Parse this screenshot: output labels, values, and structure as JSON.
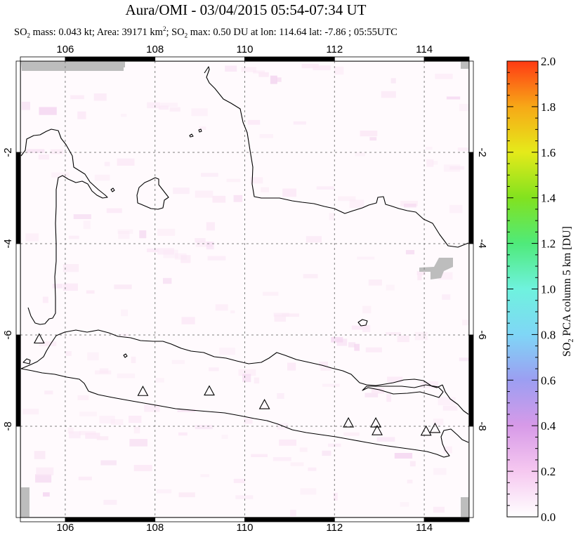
{
  "header": {
    "title": "Aura/OMI - 03/04/2015 05:54-07:34 UT",
    "subtitle": {
      "p1": "SO",
      "p1_sub": "2",
      "p2": " mass: 0.043 kt; Area: 39171 km",
      "p2_sup": "2",
      "p3": "; SO",
      "p3_sub": "2",
      "p4": " max: 0.50 DU at lon: 114.64 lat: -7.86 ; 05:55UTC"
    }
  },
  "chart_data": {
    "type": "heatmap",
    "title": "Aura/OMI - 03/04/2015 05:54-07:34 UT",
    "x_range": [
      105.0,
      115.0
    ],
    "y_range": [
      -10.0,
      0.0
    ],
    "x_ticks": [
      106,
      108,
      110,
      112,
      114
    ],
    "y_ticks": [
      -2,
      -4,
      -6,
      -8
    ],
    "x_tick_labels": [
      "106",
      "108",
      "110",
      "112",
      "114"
    ],
    "y_tick_labels": [
      "-2",
      "-4",
      "-6",
      "-8"
    ],
    "grid": true,
    "colorbar": {
      "label_parts": [
        "SO",
        "2",
        " PCA column 5 km [DU]"
      ],
      "range": [
        0.0,
        2.0
      ],
      "ticks": [
        "0.0",
        "0.2",
        "0.4",
        "0.6",
        "0.8",
        "1.0",
        "1.2",
        "1.4",
        "1.6",
        "1.8",
        "2.0"
      ],
      "colors": [
        "#ffffff",
        "#f6c8f0",
        "#d79ae8",
        "#9c9ef2",
        "#7fd6f6",
        "#6ff2de",
        "#4fea7a",
        "#82e21f",
        "#e5ea1a",
        "#f7a817",
        "#ff3a14"
      ]
    },
    "max_value": {
      "value": 0.5,
      "lon": 114.64,
      "lat": -7.86
    },
    "volcanoes": [
      {
        "lon": 105.42,
        "lat": -6.1
      },
      {
        "lon": 107.73,
        "lat": -7.25
      },
      {
        "lon": 109.21,
        "lat": -7.24
      },
      {
        "lon": 110.44,
        "lat": -7.54
      },
      {
        "lon": 112.31,
        "lat": -7.94
      },
      {
        "lon": 112.92,
        "lat": -7.94
      },
      {
        "lon": 112.95,
        "lat": -8.11
      },
      {
        "lon": 114.04,
        "lat": -8.12
      },
      {
        "lon": 114.24,
        "lat": -8.06
      }
    ],
    "missing_data_color": "#bdbdbd"
  }
}
